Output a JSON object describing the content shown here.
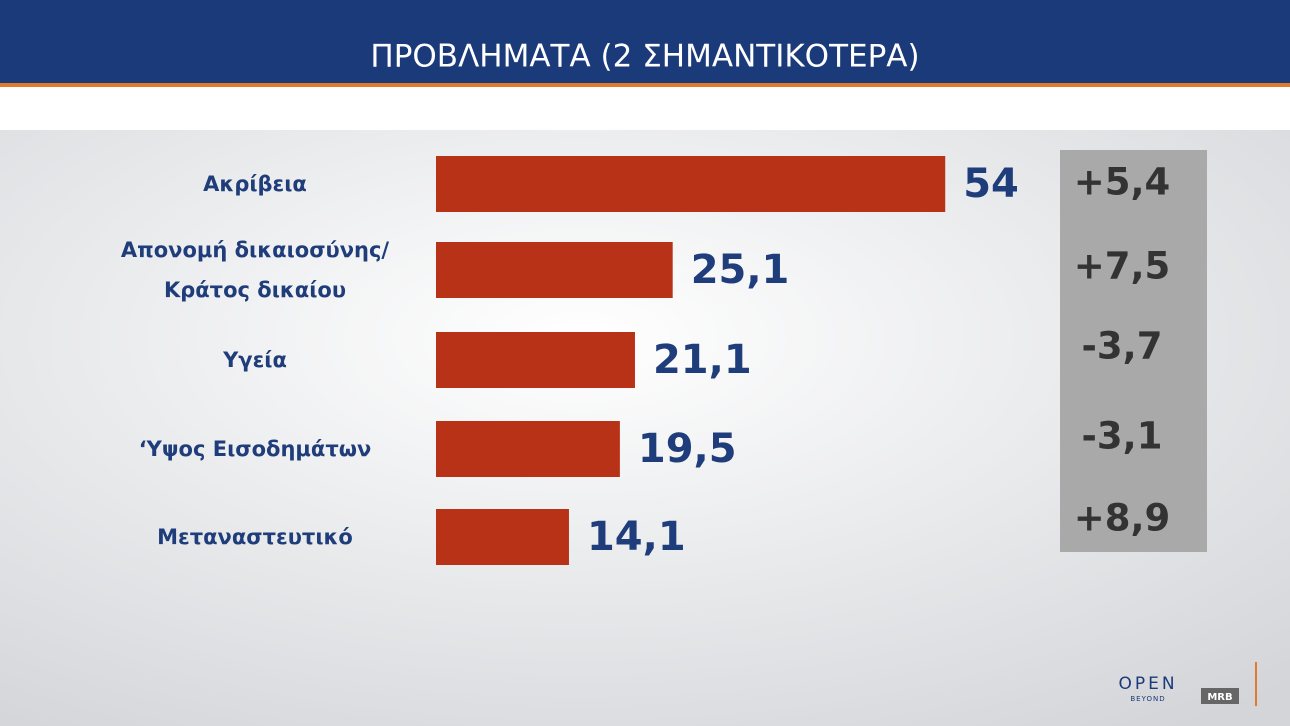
{
  "chart_data": {
    "type": "bar",
    "title": "ΠΡΟΒΛΗΜΑΤΑ (2 ΣΗΜΑΝΤΙΚΟΤΕΡΑ)",
    "categories": [
      "Ακρίβεια",
      "Απονομή δικαιοσύνης/\nΚράτος δικαίου",
      "Υγεία",
      "‘Υψος Εισοδημάτων",
      "Μεταναστευτικό"
    ],
    "values": [
      54,
      25.1,
      21.1,
      19.5,
      14.1
    ],
    "value_labels": [
      "54",
      "25,1",
      "21,1",
      "19,5",
      "14,1"
    ],
    "color": "#b83218",
    "changes": [
      {
        "value": 5.4,
        "label": "+5,4"
      },
      {
        "value": 7.5,
        "label": "+7,5"
      },
      {
        "value": -3.7,
        "label": "-3,7"
      },
      {
        "value": -3.1,
        "label": "-3,1"
      },
      {
        "value": 8.9,
        "label": "+8,9"
      }
    ]
  },
  "branding": {
    "channel": "OPEN",
    "tagline": "BEYOND",
    "pollster": "MRB"
  }
}
